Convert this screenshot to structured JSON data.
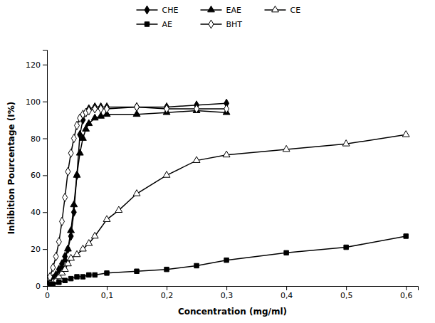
{
  "chart_data": {
    "type": "line",
    "xlabel": "Concentration (mg/ml)",
    "ylabel": "Inhibition Pourcentage (I%)",
    "xlim": [
      0,
      0.62
    ],
    "ylim": [
      0,
      128
    ],
    "xticks": [
      0,
      {
        "value": 0.1,
        "label": "0,1"
      },
      {
        "value": 0.2,
        "label": "0,2"
      },
      {
        "value": 0.3,
        "label": "0,3"
      },
      {
        "value": 0.4,
        "label": "0,4"
      },
      {
        "value": 0.5,
        "label": "0,5"
      },
      {
        "value": 0.6,
        "label": "0,6"
      }
    ],
    "yticks": [
      0,
      20,
      40,
      60,
      80,
      100,
      120
    ],
    "legend": "top",
    "grid": false,
    "series": [
      {
        "name": "CHE",
        "color": "#000000",
        "marker": "diamond",
        "x": [
          0.005,
          0.01,
          0.015,
          0.02,
          0.025,
          0.03,
          0.035,
          0.04,
          0.045,
          0.05,
          0.055,
          0.06,
          0.065,
          0.07,
          0.08,
          0.09,
          0.1,
          0.15,
          0.2,
          0.25,
          0.3
        ],
        "values": [
          2,
          4,
          6,
          9,
          12,
          16,
          20,
          27,
          40,
          60,
          82,
          90,
          94,
          96,
          97,
          97,
          97,
          97,
          97,
          98,
          99
        ]
      },
      {
        "name": "EAE",
        "color": "#000000",
        "marker": "triangle",
        "x": [
          0.005,
          0.01,
          0.015,
          0.02,
          0.025,
          0.03,
          0.035,
          0.04,
          0.045,
          0.05,
          0.055,
          0.06,
          0.065,
          0.07,
          0.08,
          0.09,
          0.1,
          0.15,
          0.2,
          0.25,
          0.3
        ],
        "values": [
          2,
          3,
          5,
          7,
          10,
          14,
          20,
          30,
          44,
          60,
          72,
          80,
          85,
          88,
          91,
          92,
          93,
          93,
          94,
          95,
          94
        ]
      },
      {
        "name": "CE",
        "color": "#000000",
        "marker": "triangle-open",
        "x": [
          0.005,
          0.01,
          0.015,
          0.02,
          0.025,
          0.03,
          0.035,
          0.04,
          0.05,
          0.06,
          0.07,
          0.08,
          0.1,
          0.12,
          0.15,
          0.2,
          0.25,
          0.3,
          0.4,
          0.5,
          0.6
        ],
        "values": [
          1,
          2,
          3,
          5,
          7,
          9,
          12,
          15,
          17,
          20,
          23,
          27,
          36,
          41,
          50,
          60,
          68,
          71,
          74,
          77,
          82
        ]
      },
      {
        "name": "AE",
        "color": "#000000",
        "marker": "square",
        "x": [
          0.005,
          0.01,
          0.02,
          0.03,
          0.04,
          0.05,
          0.06,
          0.07,
          0.08,
          0.1,
          0.15,
          0.2,
          0.25,
          0.3,
          0.4,
          0.5,
          0.6
        ],
        "values": [
          1,
          1,
          2,
          3,
          4,
          5,
          5,
          6,
          6,
          7,
          8,
          9,
          11,
          14,
          18,
          21,
          27
        ]
      },
      {
        "name": "BHT",
        "color": "#000000",
        "marker": "diamond-open",
        "x": [
          0.005,
          0.01,
          0.015,
          0.02,
          0.025,
          0.03,
          0.035,
          0.04,
          0.045,
          0.05,
          0.055,
          0.06,
          0.065,
          0.07,
          0.08,
          0.09,
          0.1,
          0.15,
          0.2,
          0.25,
          0.3
        ],
        "values": [
          5,
          10,
          16,
          24,
          35,
          48,
          62,
          72,
          80,
          87,
          91,
          93,
          94,
          95,
          96,
          96,
          96,
          97,
          96,
          96,
          96
        ]
      }
    ]
  }
}
